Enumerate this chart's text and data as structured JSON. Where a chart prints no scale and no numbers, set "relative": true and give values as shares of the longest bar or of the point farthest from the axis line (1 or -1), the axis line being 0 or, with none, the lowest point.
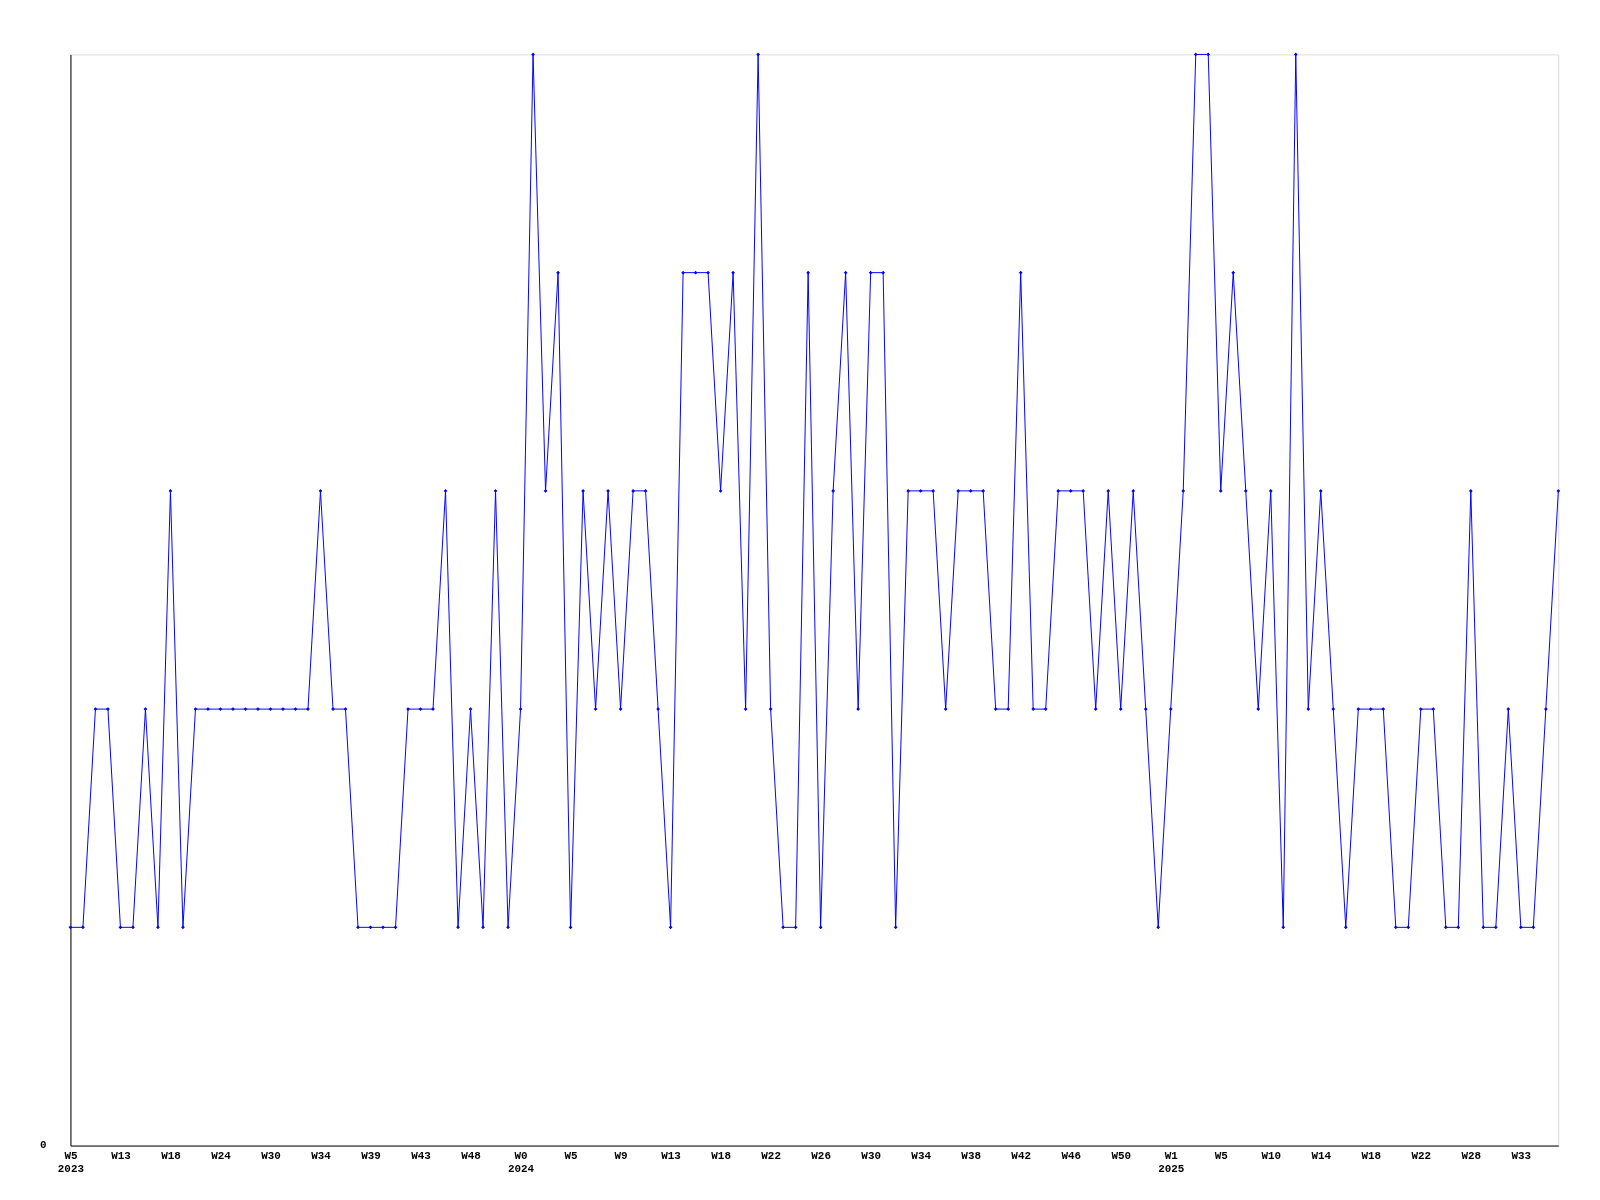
{
  "chart_data": {
    "type": "line",
    "relative": true,
    "marker": "diamond",
    "line_style": "solid",
    "grid": false,
    "categories": [
      "W5 2023",
      null,
      null,
      null,
      "W13",
      null,
      null,
      null,
      "W18",
      null,
      null,
      null,
      "W24",
      null,
      null,
      null,
      "W30",
      null,
      null,
      null,
      "W34",
      null,
      null,
      null,
      "W39",
      null,
      null,
      null,
      "W43",
      null,
      null,
      null,
      "W48",
      null,
      null,
      null,
      "W0 2024",
      null,
      null,
      null,
      "W5",
      null,
      null,
      null,
      "W9",
      null,
      null,
      null,
      "W13",
      null,
      null,
      null,
      "W18",
      null,
      null,
      null,
      "W22",
      null,
      null,
      null,
      "W26",
      null,
      null,
      null,
      "W30",
      null,
      null,
      null,
      "W34",
      null,
      null,
      null,
      "W38",
      null,
      null,
      null,
      "W42",
      null,
      null,
      null,
      "W46",
      null,
      null,
      null,
      "W50",
      null,
      null,
      null,
      "W1 2025",
      null,
      null,
      null,
      "W5",
      null,
      null,
      null,
      "W10",
      null,
      null,
      null,
      "W14",
      null,
      null,
      null,
      "W18",
      null,
      null,
      null,
      "W22",
      null,
      null,
      null,
      "W28",
      null,
      null,
      null,
      "W33",
      null,
      null,
      null
    ],
    "series": [
      {
        "color": "#0000ff",
        "values": [
          0.2,
          0.2,
          0.4,
          0.4,
          0.2,
          0.2,
          0.4,
          0.2,
          0.6,
          0.2,
          0.4,
          0.4,
          0.4,
          0.4,
          0.4,
          0.4,
          0.4,
          0.4,
          0.4,
          0.4,
          0.6,
          0.4,
          0.4,
          0.2,
          0.2,
          0.2,
          0.2,
          0.4,
          0.4,
          0.4,
          0.6,
          0.2,
          0.4,
          0.2,
          0.6,
          0.2,
          0.4,
          1,
          0.6,
          0.8,
          0.2,
          0.6,
          0.4,
          0.6,
          0.4,
          0.6,
          0.6,
          0.4,
          0.2,
          0.8,
          0.8,
          0.8,
          0.6,
          0.8,
          0.4,
          1,
          0.4,
          0.2,
          0.2,
          0.8,
          0.2,
          0.6,
          0.8,
          0.4,
          0.8,
          0.8,
          0.2,
          0.6,
          0.6,
          0.6,
          0.4,
          0.6,
          0.6,
          0.6,
          0.4,
          0.4,
          0.8,
          0.4,
          0.4,
          0.6,
          0.6,
          0.6,
          0.4,
          0.6,
          0.4,
          0.6,
          0.4,
          0.2,
          0.4,
          0.6,
          1,
          1,
          0.6,
          0.8,
          0.6,
          0.4,
          0.6,
          0.2,
          1,
          0.4,
          0.6,
          0.4,
          0.2,
          0.4,
          0.4,
          0.4,
          0.2,
          0.2,
          0.4,
          0.4,
          0.2,
          0.2,
          0.6,
          0.2,
          0.2,
          0.4,
          0.2,
          0.2,
          0.4,
          0.6
        ]
      }
    ],
    "annotations": [
      "0"
    ]
  }
}
